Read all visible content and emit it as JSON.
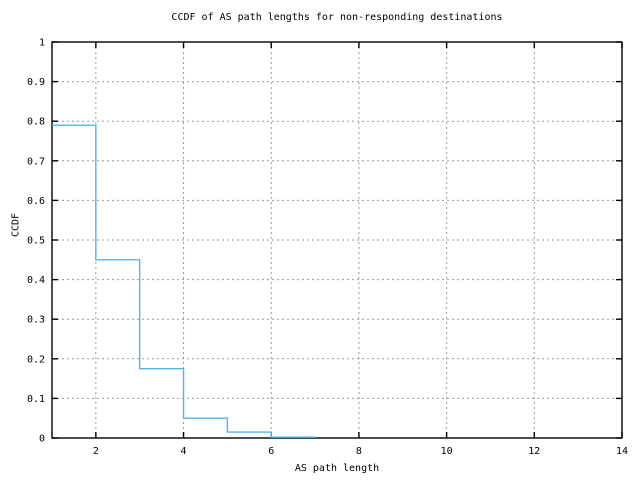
{
  "chart_data": {
    "type": "line",
    "subtype": "ccdf-step-function",
    "title": "CCDF of AS path lengths for non-responding destinations",
    "xlabel": "AS path length",
    "ylabel": "CCDF",
    "xlim": [
      1,
      14
    ],
    "ylim": [
      0,
      1
    ],
    "grid": "dashed",
    "legend_position": "none",
    "x_ticks": [
      {
        "value": 2,
        "label": "2"
      },
      {
        "value": 4,
        "label": "4"
      },
      {
        "value": 6,
        "label": "6"
      },
      {
        "value": 8,
        "label": "8"
      },
      {
        "value": 10,
        "label": "10"
      },
      {
        "value": 12,
        "label": "12"
      },
      {
        "value": 14,
        "label": "14"
      }
    ],
    "y_ticks": [
      {
        "value": 0.0,
        "label": "0"
      },
      {
        "value": 0.1,
        "label": "0.1"
      },
      {
        "value": 0.2,
        "label": "0.2"
      },
      {
        "value": 0.3,
        "label": "0.3"
      },
      {
        "value": 0.4,
        "label": "0.4"
      },
      {
        "value": 0.5,
        "label": "0.5"
      },
      {
        "value": 0.6,
        "label": "0.6"
      },
      {
        "value": 0.7,
        "label": "0.7"
      },
      {
        "value": 0.8,
        "label": "0.8"
      },
      {
        "value": 0.9,
        "label": "0.9"
      },
      {
        "value": 1.0,
        "label": "1"
      }
    ],
    "series": [
      {
        "name": "ccdf",
        "style": "steps",
        "color": "#56b4e9",
        "x": [
          1,
          2,
          3,
          4,
          5,
          6,
          7
        ],
        "y": [
          0.79,
          0.45,
          0.175,
          0.05,
          0.015,
          0.002,
          0
        ]
      }
    ],
    "colors": {
      "background": "#ffffff",
      "axis": "#000000",
      "grid": "#999999",
      "text": "#000000",
      "line": "#56b4e9"
    }
  }
}
